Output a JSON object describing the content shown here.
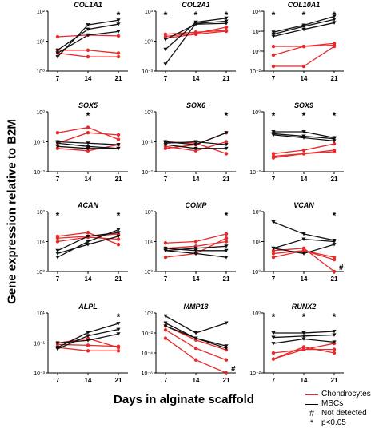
{
  "figure": {
    "y_label": "Gene expression relative to B2M",
    "x_label": "Days in alginate scaffold",
    "colors": {
      "chondrocytes": "#e8292a",
      "mscs": "#111111"
    },
    "legend": [
      {
        "label": "Chondrocytes",
        "symbol": "line",
        "color": "#e8292a"
      },
      {
        "label": "MSCs",
        "symbol": "line",
        "color": "#111111"
      },
      {
        "label": "Not detected",
        "symbol": "#"
      },
      {
        "label": "p<0.05",
        "symbol": "*"
      }
    ]
  },
  "chart_data": [
    {
      "type": "line",
      "title": "COL1A1",
      "x": [
        7,
        14,
        21
      ],
      "xticks": [
        "7",
        "14",
        "21"
      ],
      "yscale": "log",
      "ylim": [
        1,
        100
      ],
      "yticks": [
        "10⁰",
        "10¹",
        "10²"
      ],
      "star_x": [
        21
      ],
      "nd_x": [],
      "series": [
        {
          "group": "Chondrocytes",
          "values": [
            14,
            16,
            15
          ]
        },
        {
          "group": "Chondrocytes",
          "values": [
            5,
            5,
            4
          ]
        },
        {
          "group": "Chondrocytes",
          "values": [
            4,
            3,
            3
          ]
        },
        {
          "group": "MSCs",
          "values": [
            3,
            35,
            50
          ]
        },
        {
          "group": "MSCs",
          "values": [
            5,
            25,
            37
          ]
        },
        {
          "group": "MSCs",
          "values": [
            4,
            16,
            21
          ]
        }
      ]
    },
    {
      "type": "line",
      "title": "COL2A1",
      "x": [
        7,
        14,
        21
      ],
      "xticks": [
        "7",
        "14",
        "21"
      ],
      "yscale": "log",
      "ylim": [
        0.001,
        1000
      ],
      "yticks": [
        "10⁻³",
        "10⁰",
        "10³"
      ],
      "star_x": [
        7,
        14,
        21
      ],
      "nd_x": [],
      "series": [
        {
          "group": "Chondrocytes",
          "values": [
            3,
            6,
            25
          ]
        },
        {
          "group": "Chondrocytes",
          "values": [
            2,
            5,
            10
          ]
        },
        {
          "group": "Chondrocytes",
          "values": [
            5,
            8,
            12
          ]
        },
        {
          "group": "MSCs",
          "values": [
            0.005,
            60,
            100
          ]
        },
        {
          "group": "MSCs",
          "values": [
            0.15,
            80,
            200
          ]
        },
        {
          "group": "MSCs",
          "values": [
            1.5,
            50,
            60
          ]
        }
      ]
    },
    {
      "type": "line",
      "title": "COL10A1",
      "x": [
        7,
        14,
        21
      ],
      "xticks": [
        "7",
        "14",
        "21"
      ],
      "yscale": "log",
      "ylim": [
        0.01,
        10000
      ],
      "yticks": [
        "10⁻²",
        "10⁰",
        "10²",
        "10⁴"
      ],
      "star_x": [
        7,
        14,
        21
      ],
      "nd_x": [],
      "series": [
        {
          "group": "Chondrocytes",
          "values": [
            0.03,
            0.03,
            3
          ]
        },
        {
          "group": "Chondrocytes",
          "values": [
            0.4,
            3,
            4
          ]
        },
        {
          "group": "Chondrocytes",
          "values": [
            3,
            3,
            6
          ]
        },
        {
          "group": "MSCs",
          "values": [
            80,
            400,
            3000
          ]
        },
        {
          "group": "MSCs",
          "values": [
            50,
            300,
            1500
          ]
        },
        {
          "group": "MSCs",
          "values": [
            30,
            150,
            700
          ]
        }
      ]
    },
    {
      "type": "line",
      "title": "SOX5",
      "x": [
        7,
        14,
        21
      ],
      "xticks": [
        "7",
        "14",
        "21"
      ],
      "yscale": "log",
      "ylim": [
        0.01,
        1
      ],
      "yticks": [
        "10⁻²",
        "10⁻¹",
        "10⁰"
      ],
      "star_x": [
        14
      ],
      "nd_x": [],
      "series": [
        {
          "group": "Chondrocytes",
          "values": [
            0.2,
            0.3,
            0.12
          ]
        },
        {
          "group": "Chondrocytes",
          "values": [
            0.09,
            0.2,
            0.17
          ]
        },
        {
          "group": "Chondrocytes",
          "values": [
            0.06,
            0.05,
            0.08
          ]
        },
        {
          "group": "MSCs",
          "values": [
            0.1,
            0.09,
            0.08
          ]
        },
        {
          "group": "MSCs",
          "values": [
            0.09,
            0.07,
            0.06
          ]
        },
        {
          "group": "MSCs",
          "values": [
            0.07,
            0.06,
            0.06
          ]
        }
      ]
    },
    {
      "type": "line",
      "title": "SOX6",
      "x": [
        7,
        14,
        21
      ],
      "xticks": [
        "7",
        "14",
        "21"
      ],
      "yscale": "log",
      "ylim": [
        0.01,
        1
      ],
      "yticks": [
        "10⁻²",
        "10⁻¹",
        "10⁰"
      ],
      "star_x": [
        21
      ],
      "nd_x": [],
      "series": [
        {
          "group": "Chondrocytes",
          "values": [
            0.1,
            0.09,
            0.04
          ]
        },
        {
          "group": "Chondrocytes",
          "values": [
            0.07,
            0.05,
            0.1
          ]
        },
        {
          "group": "Chondrocytes",
          "values": [
            0.06,
            0.08,
            0.2
          ]
        },
        {
          "group": "MSCs",
          "values": [
            0.1,
            0.08,
            0.2
          ]
        },
        {
          "group": "MSCs",
          "values": [
            0.09,
            0.1,
            0.08
          ]
        },
        {
          "group": "MSCs",
          "values": [
            0.08,
            0.06,
            0.06
          ]
        }
      ]
    },
    {
      "type": "line",
      "title": "SOX9",
      "x": [
        7,
        14,
        21
      ],
      "xticks": [
        "7",
        "14",
        "21"
      ],
      "yscale": "log",
      "ylim": [
        0.01,
        10
      ],
      "yticks": [
        "10⁻²",
        "10⁰"
      ],
      "star_x": [
        7,
        14,
        21
      ],
      "nd_x": [],
      "series": [
        {
          "group": "Chondrocytes",
          "values": [
            0.08,
            0.12,
            0.25
          ]
        },
        {
          "group": "Chondrocytes",
          "values": [
            0.06,
            0.08,
            0.12
          ]
        },
        {
          "group": "Chondrocytes",
          "values": [
            0.05,
            0.08,
            0.1
          ]
        },
        {
          "group": "MSCs",
          "values": [
            1,
            1,
            0.5
          ]
        },
        {
          "group": "MSCs",
          "values": [
            0.8,
            0.6,
            0.45
          ]
        },
        {
          "group": "MSCs",
          "values": [
            0.7,
            0.5,
            0.35
          ]
        }
      ]
    },
    {
      "type": "line",
      "title": "ACAN",
      "x": [
        7,
        14,
        21
      ],
      "xticks": [
        "7",
        "14",
        "21"
      ],
      "yscale": "log",
      "ylim": [
        1,
        100
      ],
      "yticks": [
        "10⁰",
        "10¹",
        "10²"
      ],
      "star_x": [
        7,
        21
      ],
      "nd_x": [],
      "series": [
        {
          "group": "Chondrocytes",
          "values": [
            15,
            20,
            8
          ]
        },
        {
          "group": "Chondrocytes",
          "values": [
            13,
            15,
            18
          ]
        },
        {
          "group": "Chondrocytes",
          "values": [
            10,
            14,
            12
          ]
        },
        {
          "group": "MSCs",
          "values": [
            3,
            10,
            25
          ]
        },
        {
          "group": "MSCs",
          "values": [
            5,
            15,
            20
          ]
        },
        {
          "group": "MSCs",
          "values": [
            4,
            8,
            15
          ]
        }
      ]
    },
    {
      "type": "line",
      "title": "COMP",
      "x": [
        7,
        14,
        21
      ],
      "xticks": [
        "7",
        "14",
        "21"
      ],
      "yscale": "log",
      "ylim": [
        1,
        100
      ],
      "yticks": [
        "10⁰",
        "10¹",
        "10²"
      ],
      "star_x": [
        21
      ],
      "nd_x": [],
      "series": [
        {
          "group": "Chondrocytes",
          "values": [
            9,
            10,
            18
          ]
        },
        {
          "group": "Chondrocytes",
          "values": [
            3,
            4,
            13
          ]
        },
        {
          "group": "Chondrocytes",
          "values": [
            6,
            7,
            10
          ]
        },
        {
          "group": "MSCs",
          "values": [
            6,
            5,
            5
          ]
        },
        {
          "group": "MSCs",
          "values": [
            5,
            4,
            3
          ]
        },
        {
          "group": "MSCs",
          "values": [
            5,
            6,
            7
          ]
        }
      ]
    },
    {
      "type": "line",
      "title": "VCAN",
      "x": [
        7,
        14,
        21
      ],
      "xticks": [
        "7",
        "14",
        "21"
      ],
      "yscale": "log",
      "ylim": [
        1,
        100
      ],
      "yticks": [
        "10⁰",
        "10¹",
        "10²"
      ],
      "star_x": [
        21
      ],
      "nd_x": [
        21
      ],
      "series": [
        {
          "group": "Chondrocytes",
          "values": [
            5,
            6,
            1
          ]
        },
        {
          "group": "Chondrocytes",
          "values": [
            4,
            5,
            2.5
          ]
        },
        {
          "group": "Chondrocytes",
          "values": [
            3,
            5,
            3
          ]
        },
        {
          "group": "MSCs",
          "values": [
            45,
            18,
            11
          ]
        },
        {
          "group": "MSCs",
          "values": [
            6,
            12,
            10
          ]
        },
        {
          "group": "MSCs",
          "values": [
            6,
            4,
            8
          ]
        }
      ]
    },
    {
      "type": "line",
      "title": "ALPL",
      "x": [
        7,
        14,
        21
      ],
      "xticks": [
        "7",
        "14",
        "21"
      ],
      "yscale": "log",
      "ylim": [
        0.001,
        10
      ],
      "yticks": [
        "10⁻³",
        "10⁻¹",
        "10¹"
      ],
      "star_x": [
        21
      ],
      "nd_x": [],
      "series": [
        {
          "group": "Chondrocytes",
          "values": [
            0.1,
            0.2,
            0.05
          ]
        },
        {
          "group": "Chondrocytes",
          "values": [
            0.08,
            0.07,
            0.06
          ]
        },
        {
          "group": "Chondrocytes",
          "values": [
            0.05,
            0.03,
            0.03
          ]
        },
        {
          "group": "MSCs",
          "values": [
            0.05,
            0.5,
            2
          ]
        },
        {
          "group": "MSCs",
          "values": [
            0.04,
            0.3,
            0.8
          ]
        },
        {
          "group": "MSCs",
          "values": [
            0.1,
            0.15,
            0.4
          ]
        }
      ]
    },
    {
      "type": "line",
      "title": "MMP13",
      "x": [
        7,
        14,
        21
      ],
      "xticks": [
        "7",
        "14",
        "21"
      ],
      "yscale": "log",
      "ylim": [
        1e-06,
        1
      ],
      "yticks": [
        "10⁻⁶",
        "10⁻⁴",
        "10⁻²",
        "10⁰"
      ],
      "star_x": [],
      "nd_x": [
        21
      ],
      "series": [
        {
          "group": "Chondrocytes",
          "values": [
            0.003,
            2e-05,
            1e-06
          ]
        },
        {
          "group": "Chondrocytes",
          "values": [
            0.02,
            0.0003,
            2e-05
          ]
        },
        {
          "group": "Chondrocytes",
          "values": [
            0.05,
            0.002,
            0.0002
          ]
        },
        {
          "group": "MSCs",
          "values": [
            0.5,
            0.01,
            0.1
          ]
        },
        {
          "group": "MSCs",
          "values": [
            0.1,
            0.003,
            0.0003
          ]
        },
        {
          "group": "MSCs",
          "values": [
            0.05,
            0.003,
            0.0005
          ]
        }
      ]
    },
    {
      "type": "line",
      "title": "RUNX2",
      "x": [
        7,
        14,
        21
      ],
      "xticks": [
        "7",
        "14",
        "21"
      ],
      "yscale": "log",
      "ylim": [
        0.01,
        10
      ],
      "yticks": [
        "10⁻²",
        "10⁰"
      ],
      "star_x": [
        7,
        14,
        21
      ],
      "nd_x": [],
      "series": [
        {
          "group": "Chondrocytes",
          "values": [
            0.05,
            0.15,
            0.15
          ]
        },
        {
          "group": "Chondrocytes",
          "values": [
            0.1,
            0.15,
            0.3
          ]
        },
        {
          "group": "Chondrocytes",
          "values": [
            0.05,
            0.2,
            0.1
          ]
        },
        {
          "group": "MSCs",
          "values": [
            1,
            1,
            1.2
          ]
        },
        {
          "group": "MSCs",
          "values": [
            0.6,
            0.7,
            0.8
          ]
        },
        {
          "group": "MSCs",
          "values": [
            0.3,
            0.5,
            0.35
          ]
        }
      ]
    }
  ]
}
